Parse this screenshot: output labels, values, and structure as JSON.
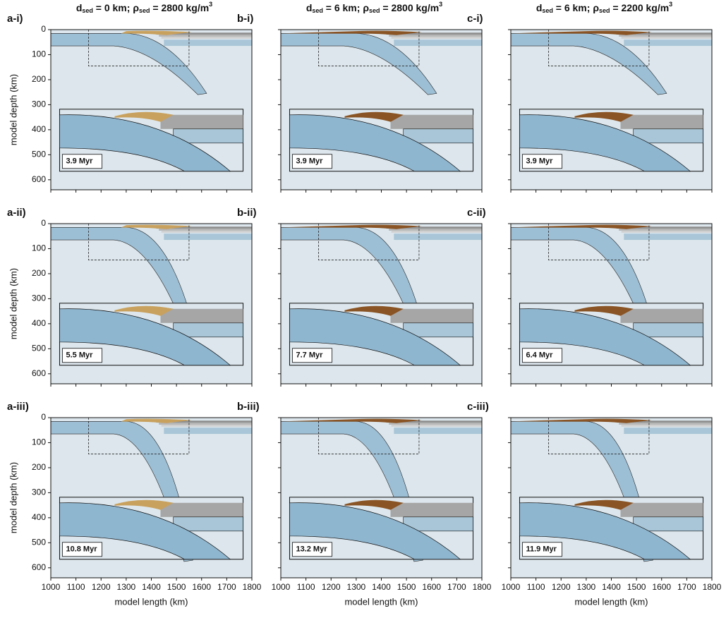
{
  "column_titles": [
    [
      {
        "text": "d"
      },
      {
        "text": "sed",
        "sub": true
      },
      {
        "text": " = 0 km; "
      },
      {
        "text": "ρ"
      },
      {
        "text": "sed",
        "sub": true
      },
      {
        "text": " = 2800 kg/m"
      },
      {
        "text": "3",
        "sup": true
      }
    ],
    [
      {
        "text": "d"
      },
      {
        "text": "sed",
        "sub": true
      },
      {
        "text": " = 6 km; "
      },
      {
        "text": "ρ"
      },
      {
        "text": "sed",
        "sub": true
      },
      {
        "text": " = 2800 kg/m"
      },
      {
        "text": "3",
        "sup": true
      }
    ],
    [
      {
        "text": "d"
      },
      {
        "text": "sed",
        "sub": true
      },
      {
        "text": " = 6 km; "
      },
      {
        "text": "ρ"
      },
      {
        "text": "sed",
        "sub": true
      },
      {
        "text": " = 2200 kg/m"
      },
      {
        "text": "3",
        "sup": true
      }
    ]
  ],
  "panels": [
    {
      "label": "a-i)",
      "time": "3.9 Myr"
    },
    {
      "label": "b-i)",
      "time": "3.9 Myr"
    },
    {
      "label": "c-i)",
      "time": "3.9 Myr"
    },
    {
      "label": "a-ii)",
      "time": "5.5 Myr"
    },
    {
      "label": "b-ii)",
      "time": "7.7 Myr"
    },
    {
      "label": "c-ii)",
      "time": "6.4 Myr"
    },
    {
      "label": "a-iii)",
      "time": "10.8 Myr"
    },
    {
      "label": "b-iii)",
      "time": "13.2 Myr"
    },
    {
      "label": "c-iii)",
      "time": "11.9 Myr"
    }
  ],
  "xaxis": {
    "label": "model length (km)",
    "lim": [
      1000,
      1800
    ],
    "ticks": [
      1000,
      1100,
      1200,
      1300,
      1400,
      1500,
      1600,
      1700,
      1800
    ]
  },
  "yaxis": {
    "label": "model depth (km)",
    "lim": [
      0,
      640
    ],
    "ticks": [
      0,
      100,
      200,
      300,
      400,
      500,
      600
    ]
  }
}
